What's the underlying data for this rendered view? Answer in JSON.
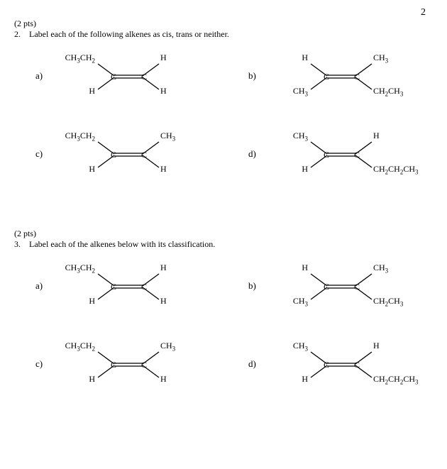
{
  "page_number": "2",
  "q2": {
    "pts": "(2 pts)",
    "num": "2.",
    "prompt": "Label each of the following alkenes as cis, trans or neither.",
    "items": {
      "a": {
        "label": "a)",
        "tl": "CH₃CH₂",
        "tr": "H",
        "bl": "H",
        "br": "H"
      },
      "b": {
        "label": "b)",
        "tl": "H",
        "tr": "CH₃",
        "bl": "CH₃",
        "br": "CH₂CH₃"
      },
      "c": {
        "label": "c)",
        "tl": "CH₃CH₂",
        "tr": "CH₃",
        "bl": "H",
        "br": "H"
      },
      "d": {
        "label": "d)",
        "tl": "CH₃",
        "tr": "H",
        "bl": "H",
        "br": "CH₂CH₂CH₃"
      }
    }
  },
  "q3": {
    "pts": "(2 pts)",
    "num": "3.",
    "prompt": "Label each of the alkenes below with its classification.",
    "items": {
      "a": {
        "label": "a)",
        "tl": "CH₃CH₂",
        "tr": "H",
        "bl": "H",
        "br": "H"
      },
      "b": {
        "label": "b)",
        "tl": "H",
        "tr": "CH₃",
        "bl": "CH₃",
        "br": "CH₂CH₃"
      },
      "c": {
        "label": "c)",
        "tl": "CH₃CH₂",
        "tr": "CH₃",
        "bl": "H",
        "br": "H"
      },
      "d": {
        "label": "d)",
        "tl": "CH₃",
        "tr": "H",
        "bl": "H",
        "br": "CH₂CH₂CH₃"
      }
    }
  },
  "bond_stroke": "#000000",
  "bond_width": 1.3
}
